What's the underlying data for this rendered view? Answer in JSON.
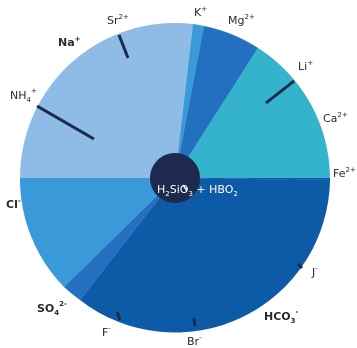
{
  "colors": {
    "light_blue": "#8fbce6",
    "mid_blue": "#3a9ad9",
    "royal_blue": "#2470c0",
    "teal": "#36b3cc",
    "navy": "#0d5aa6",
    "hub": "#1d2a4d",
    "tick": "#1d2a4d"
  },
  "labels": {
    "k": {
      "base": "K",
      "sup": "+"
    },
    "mg": {
      "base": "Mg",
      "sup": "2+"
    },
    "sr": {
      "base": "Sr",
      "sup": "2+"
    },
    "na": {
      "base": "Na",
      "sup": "+"
    },
    "nh4": {
      "base": "NH",
      "sub": "4",
      "sup": "+"
    },
    "li": {
      "base": "Li",
      "sup": "+"
    },
    "ca": {
      "base": "Ca",
      "sup": "2+"
    },
    "fe": {
      "base": "Fe",
      "sup": "2+"
    },
    "cl": {
      "base": "Cl",
      "sup": "-"
    },
    "j": {
      "base": "J",
      "sup": "-"
    },
    "so4": {
      "base": "SO",
      "sub": "4",
      "sup": "2-"
    },
    "hco3": {
      "base": "HCO",
      "sub": "3",
      "sup": "-"
    },
    "f": {
      "base": "F",
      "sup": "-"
    },
    "br": {
      "base": "Br",
      "sup": "-"
    }
  },
  "center_label": {
    "p1": "H",
    "s1": "2",
    "p2": "SiO",
    "s2": "3",
    "p3": " + HBO",
    "s3": "2"
  }
}
